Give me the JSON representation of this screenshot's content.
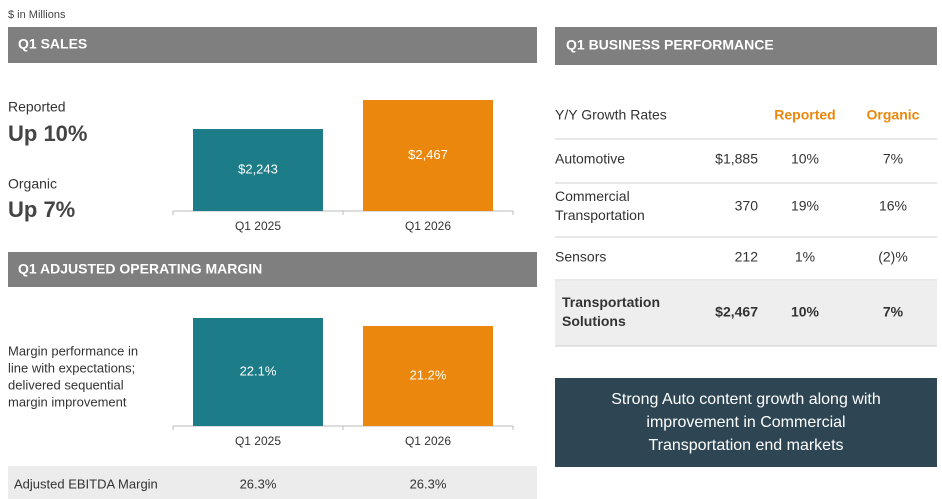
{
  "unit_note": "$ in Millions",
  "chart_data": [
    {
      "type": "bar",
      "title": "Q1 SALES",
      "annotations": [
        "Reported",
        "Up 10%",
        "Organic",
        "Up 7%"
      ],
      "categories": [
        "Q1 2025",
        "Q1 2026"
      ],
      "values": [
        2243,
        2467
      ],
      "value_labels": [
        "$2,243",
        "$2,467"
      ],
      "colors": [
        "#1c7c87",
        "#ea870c"
      ],
      "ylim": [
        1610,
        2467
      ]
    },
    {
      "type": "bar",
      "title": "Q1 ADJUSTED OPERATING MARGIN",
      "annotations": [
        "Margin performance in",
        "line with expectations;",
        "delivered sequential",
        "margin improvement"
      ],
      "categories": [
        "Q1 2025",
        "Q1 2026"
      ],
      "values": [
        22.1,
        21.2
      ],
      "value_labels": [
        "22.1%",
        "21.2%"
      ],
      "colors": [
        "#1c7c87",
        "#ea870c"
      ],
      "ylim": [
        10,
        22.1
      ]
    }
  ],
  "ebitda_row": [
    "Adjusted EBITDA Margin",
    "26.3%",
    "26.3%"
  ],
  "table": {
    "title": "Q1 BUSINESS PERFORMANCE",
    "header": {
      "label": "Y/Y Growth Rates",
      "columns": [
        "Reported",
        "Organic"
      ]
    },
    "rows": [
      [
        [
          "Automotive"
        ],
        "$1,885",
        "10%",
        "7%"
      ],
      [
        [
          "Commercial",
          "Transportation"
        ],
        "370",
        "19%",
        "16%"
      ],
      [
        [
          "Sensors"
        ],
        "212",
        "1%",
        "(2)%"
      ],
      [
        [
          "Transportation",
          "Solutions"
        ],
        "$2,467",
        "10%",
        "7%"
      ]
    ]
  },
  "callout": [
    "Strong Auto content growth along with",
    "improvement in Commercial",
    "Transportation end markets"
  ]
}
